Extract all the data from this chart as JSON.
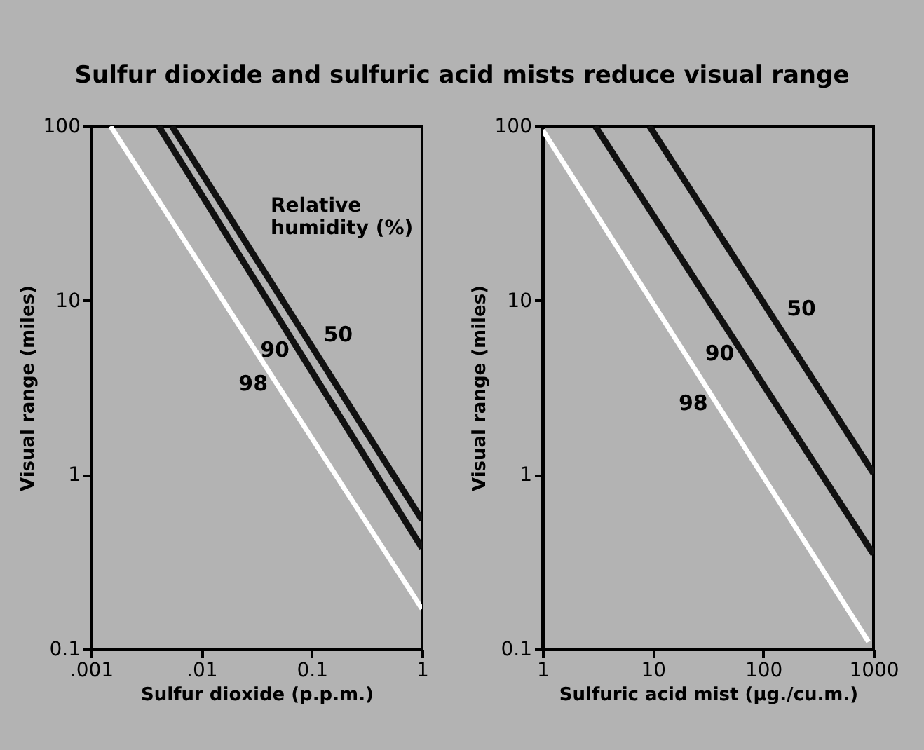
{
  "chart_data": [
    {
      "type": "line",
      "title": "Sulfur dioxide and sulfuric acid mists reduce visual range",
      "xlabel": "Sulfur dioxide (p.p.m.)",
      "ylabel": "Visual range (miles)",
      "log": "xy",
      "grid": false,
      "legend_title": "Relative humidity (%)",
      "xlim": [
        0.001,
        1
      ],
      "xticks": [
        {
          "value": 0.001,
          "label": ".001"
        },
        {
          "value": 0.01,
          "label": ".01"
        },
        0.1,
        1
      ],
      "ylim": [
        0.1,
        100
      ],
      "yticks": [
        0.1,
        1,
        10,
        100
      ],
      "series": [
        {
          "name": "50",
          "color": "#111111",
          "x": [
            0.0054,
            1
          ],
          "values": [
            100,
            0.55
          ]
        },
        {
          "name": "90",
          "color": "#111111",
          "x": [
            0.0041,
            1
          ],
          "values": [
            100,
            0.38
          ]
        },
        {
          "name": "98",
          "color": "#ffffff",
          "x": [
            0.0015,
            1
          ],
          "values": [
            100,
            0.17
          ]
        }
      ]
    },
    {
      "type": "line",
      "xlabel": "Sulfuric acid mist (µg./cu.m.)",
      "ylabel": "Visual range (miles)",
      "log": "xy",
      "grid": false,
      "xlim": [
        1,
        1000
      ],
      "xticks": [
        1,
        10,
        100,
        {
          "value": 1000,
          "label": "1000"
        }
      ],
      "ylim": [
        0.1,
        100
      ],
      "yticks": [
        0.1,
        1,
        10,
        100
      ],
      "series": [
        {
          "name": "50",
          "color": "#111111",
          "x": [
            9.3,
            1000
          ],
          "values": [
            100,
            1.02
          ]
        },
        {
          "name": "90",
          "color": "#111111",
          "x": [
            3,
            1000
          ],
          "values": [
            100,
            0.35
          ]
        },
        {
          "name": "98",
          "color": "#ffffff",
          "x": [
            1,
            900
          ],
          "values": [
            95,
            0.11
          ]
        }
      ]
    }
  ]
}
